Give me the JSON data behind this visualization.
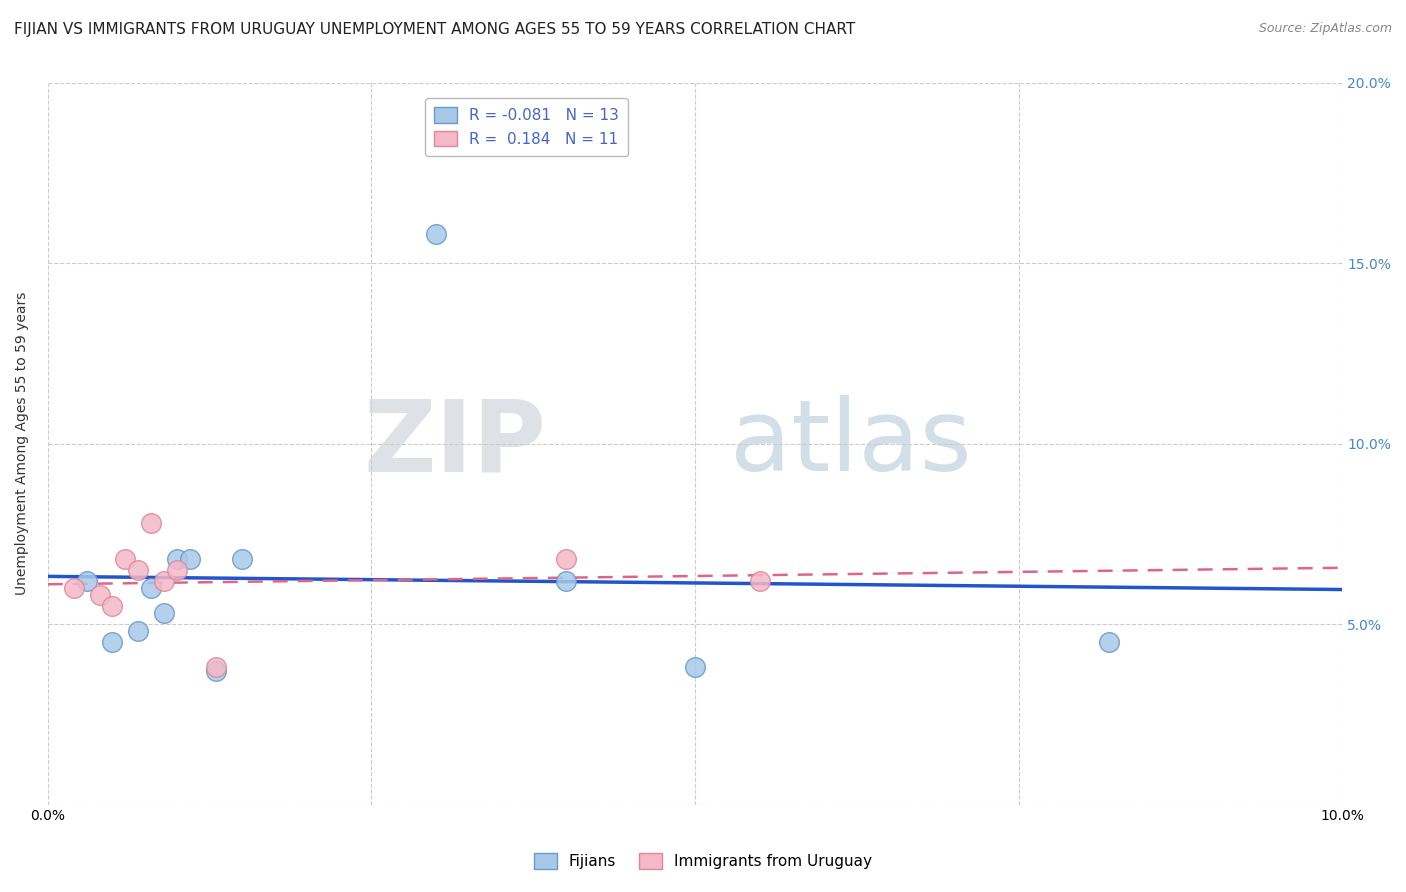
{
  "title": "FIJIAN VS IMMIGRANTS FROM URUGUAY UNEMPLOYMENT AMONG AGES 55 TO 59 YEARS CORRELATION CHART",
  "source": "Source: ZipAtlas.com",
  "ylabel": "Unemployment Among Ages 55 to 59 years",
  "xlim": [
    0.0,
    0.1
  ],
  "ylim": [
    0.0,
    0.2
  ],
  "fijian_color": "#a8c8e8",
  "fijian_edge_color": "#6699cc",
  "uruguay_color": "#f4b8c8",
  "uruguay_edge_color": "#dd8899",
  "fijian_line_color": "#2255cc",
  "uruguay_line_color": "#dd6688",
  "legend_r_fijian": "R = -0.081",
  "legend_n_fijian": "N = 13",
  "legend_r_uruguay": "R =  0.184",
  "legend_n_uruguay": "N = 11",
  "fijian_x": [
    0.003,
    0.005,
    0.007,
    0.008,
    0.009,
    0.01,
    0.011,
    0.013,
    0.015,
    0.03,
    0.04,
    0.05,
    0.082
  ],
  "fijian_y": [
    0.062,
    0.045,
    0.048,
    0.06,
    0.053,
    0.068,
    0.068,
    0.037,
    0.068,
    0.158,
    0.062,
    0.038,
    0.045
  ],
  "uruguay_x": [
    0.002,
    0.004,
    0.005,
    0.006,
    0.007,
    0.008,
    0.009,
    0.01,
    0.013,
    0.04,
    0.055
  ],
  "uruguay_y": [
    0.06,
    0.058,
    0.055,
    0.068,
    0.065,
    0.078,
    0.062,
    0.065,
    0.038,
    0.068,
    0.062
  ],
  "watermark_zip": "ZIP",
  "watermark_atlas": "atlas",
  "background_color": "#ffffff",
  "grid_color": "#cccccc",
  "title_fontsize": 11,
  "axis_label_fontsize": 10,
  "tick_fontsize": 10,
  "marker_size": 200
}
